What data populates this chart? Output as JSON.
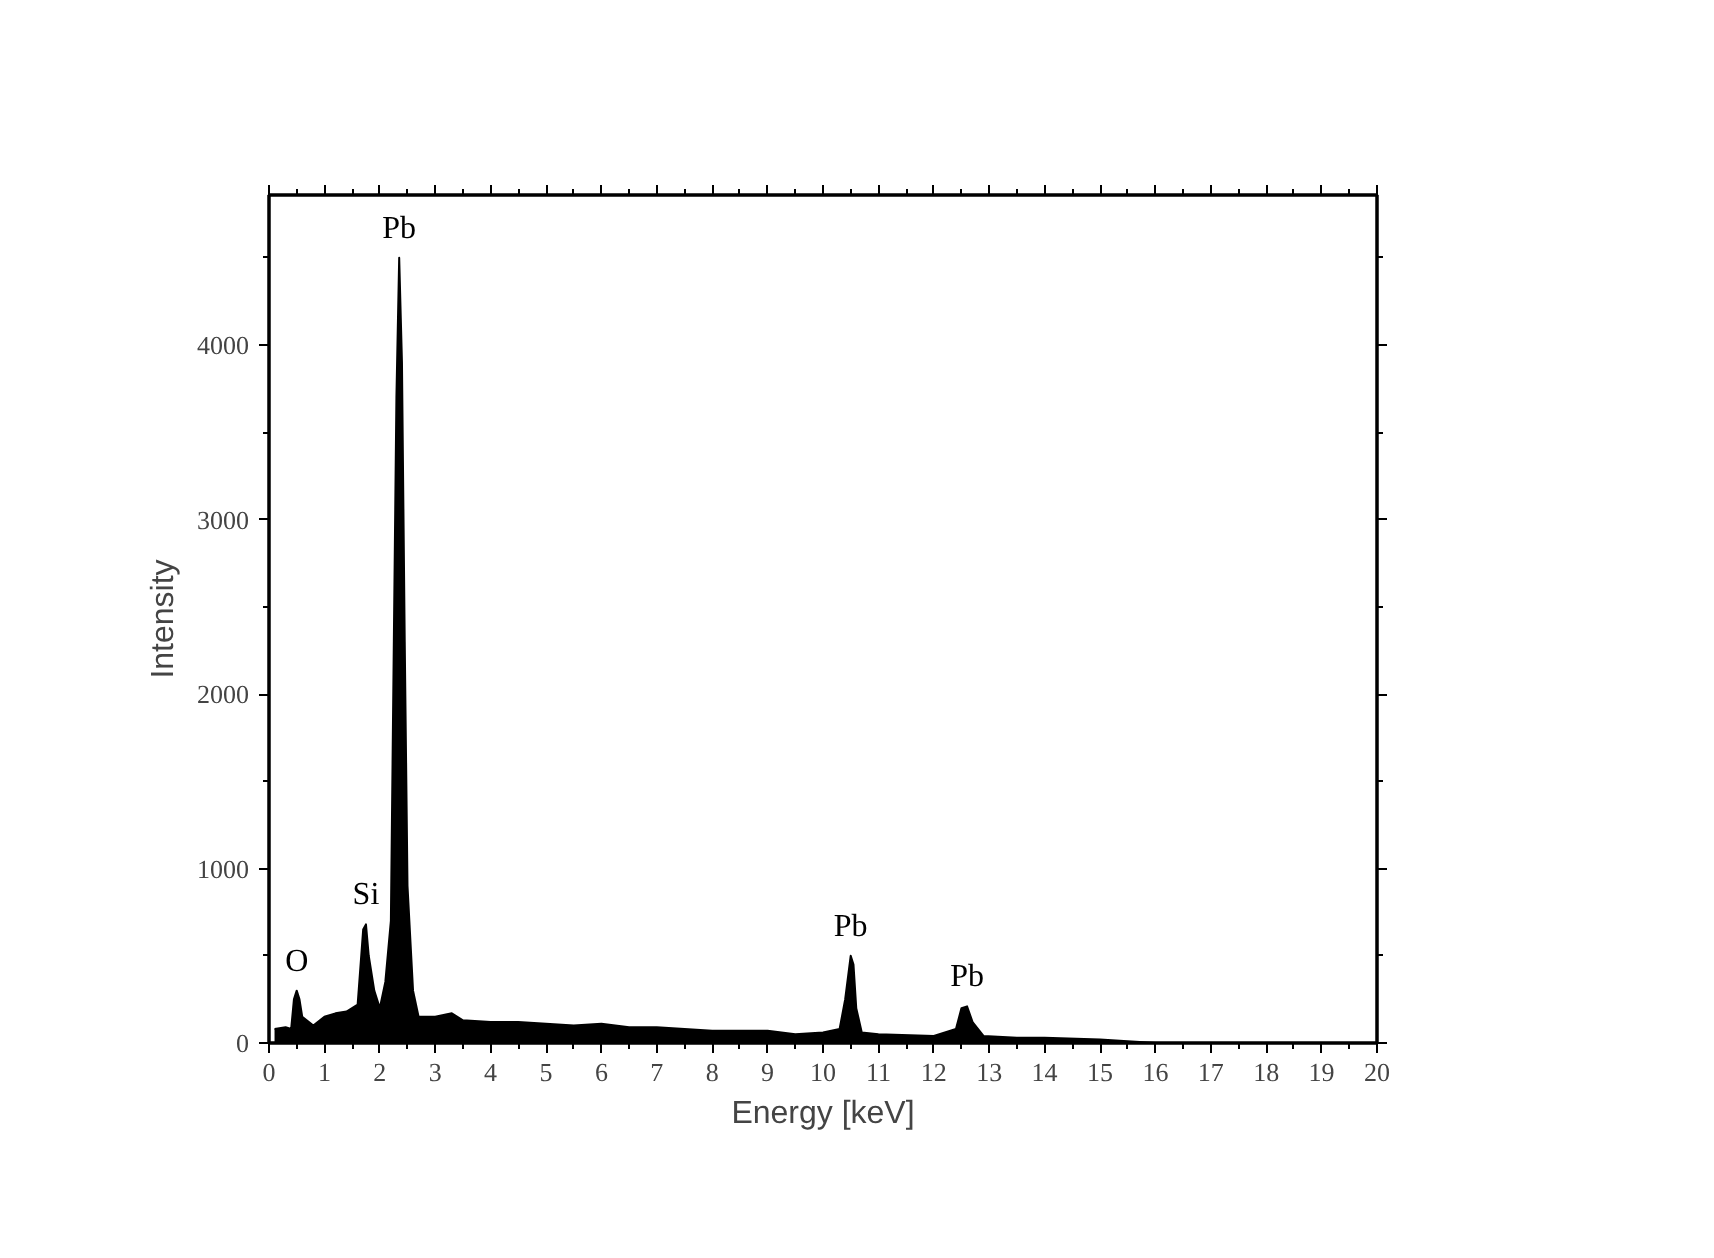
{
  "chart_data": {
    "type": "area",
    "xlabel": "Energy [keV]",
    "ylabel": "Intensity",
    "x": [
      0.1,
      0.3,
      0.4,
      0.45,
      0.5,
      0.55,
      0.6,
      0.8,
      1.0,
      1.2,
      1.4,
      1.6,
      1.7,
      1.75,
      1.8,
      1.9,
      2.0,
      2.1,
      2.2,
      2.3,
      2.35,
      2.4,
      2.45,
      2.5,
      2.6,
      2.7,
      3.0,
      3.3,
      3.5,
      4,
      4.5,
      5,
      5.5,
      6,
      6.5,
      7,
      8,
      9,
      9.5,
      10,
      10.3,
      10.4,
      10.5,
      10.55,
      10.6,
      10.7,
      11,
      12,
      12.4,
      12.5,
      12.6,
      12.7,
      12.9,
      13.5,
      14,
      15,
      15.5,
      16,
      20
    ],
    "series": [
      {
        "color": "#000000",
        "values": [
          80,
          90,
          80,
          250,
          300,
          250,
          150,
          100,
          150,
          170,
          180,
          220,
          650,
          680,
          500,
          300,
          200,
          350,
          700,
          3700,
          4500,
          3900,
          2300,
          900,
          300,
          150,
          150,
          170,
          130,
          120,
          120,
          110,
          100,
          110,
          90,
          90,
          70,
          70,
          50,
          60,
          80,
          250,
          500,
          450,
          200,
          60,
          50,
          40,
          80,
          200,
          210,
          120,
          40,
          30,
          30,
          20,
          10,
          0,
          0
        ]
      }
    ],
    "xlim": [
      0,
      20
    ],
    "ylim": [
      0,
      4860
    ],
    "xticks": [
      0,
      1,
      2,
      3,
      4,
      5,
      6,
      7,
      8,
      9,
      10,
      11,
      12,
      13,
      14,
      15,
      16,
      17,
      18,
      19,
      20
    ],
    "yticks": [
      0,
      1000,
      2000,
      3000,
      4000
    ],
    "grid": false,
    "annotations": [
      {
        "text": "O",
        "x": 0.5,
        "y": 300
      },
      {
        "text": "Si",
        "x": 1.75,
        "y": 680
      },
      {
        "text": "Pb",
        "x": 2.35,
        "y": 4500
      },
      {
        "text": "Pb",
        "x": 10.5,
        "y": 500
      },
      {
        "text": "Pb",
        "x": 12.6,
        "y": 210
      }
    ]
  }
}
